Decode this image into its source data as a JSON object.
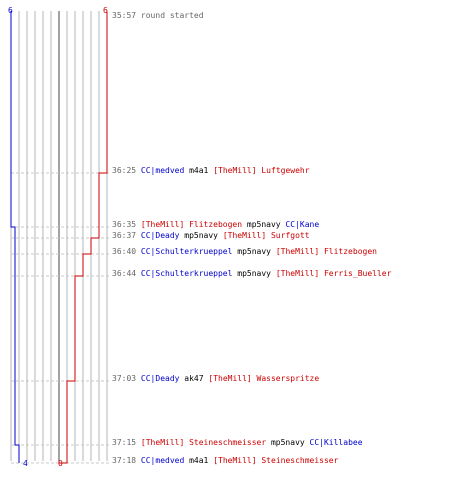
{
  "colors": {
    "blue": "#0000cc",
    "red": "#cc0000",
    "grid": "#b4b4b4",
    "text_time": "#666666"
  },
  "scores": {
    "blue_start": "6",
    "red_start": "6",
    "blue_end": "4",
    "red_end": "0"
  },
  "start": {
    "time": "35:57",
    "text": "round started"
  },
  "kills": [
    {
      "time": "36:25",
      "killer": "CC|medved",
      "killer_team": "blue",
      "weapon": "m4a1",
      "victim": "[TheMill] Luftgewehr",
      "victim_team": "red",
      "blue_alive": 6,
      "red_alive": 5
    },
    {
      "time": "36:35",
      "killer": "[TheMill] Flitzebogen",
      "killer_team": "red",
      "weapon": "mp5navy",
      "victim": "CC|Kane",
      "victim_team": "blue",
      "blue_alive": 5,
      "red_alive": 5
    },
    {
      "time": "36:37",
      "killer": "CC|Deady",
      "killer_team": "blue",
      "weapon": "mp5navy",
      "victim": "[TheMill] Surfgott",
      "victim_team": "red",
      "blue_alive": 5,
      "red_alive": 4
    },
    {
      "time": "36:40",
      "killer": "CC|Schulterkrueppel",
      "killer_team": "blue",
      "weapon": "mp5navy",
      "victim": "[TheMill] Flitzebogen",
      "victim_team": "red",
      "blue_alive": 5,
      "red_alive": 3
    },
    {
      "time": "36:44",
      "killer": "CC|Schulterkrueppel",
      "killer_team": "blue",
      "weapon": "mp5navy",
      "victim": "[TheMill] Ferris_Bueller",
      "victim_team": "red",
      "blue_alive": 5,
      "red_alive": 2
    },
    {
      "time": "37:03",
      "killer": "CC|Deady",
      "killer_team": "blue",
      "weapon": "ak47",
      "victim": "[TheMill] Wasserspritze",
      "victim_team": "red",
      "blue_alive": 5,
      "red_alive": 1
    },
    {
      "time": "37:15",
      "killer": "[TheMill] Steineschmeisser",
      "killer_team": "red",
      "weapon": "mp5navy",
      "victim": "CC|Killabee",
      "victim_team": "blue",
      "blue_alive": 4,
      "red_alive": 1
    },
    {
      "time": "37:18",
      "killer": "CC|medved",
      "killer_team": "blue",
      "weapon": "m4a1",
      "victim": "[TheMill] Steineschmeisser",
      "victim_team": "red",
      "blue_alive": 4,
      "red_alive": 0
    }
  ]
}
